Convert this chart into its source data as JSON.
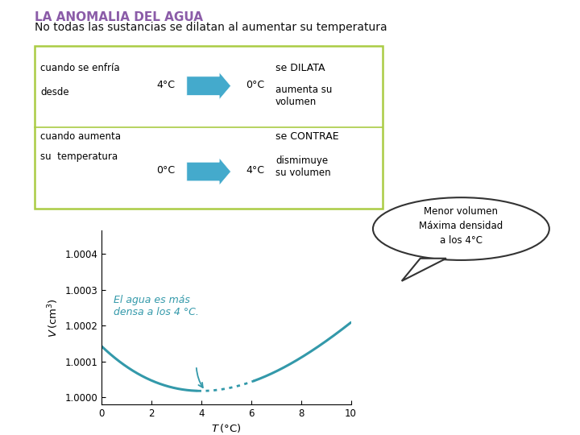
{
  "title": "LA ANOMALIA DEL AGUA",
  "subtitle": "No todas las sustancias se dilatan al aumentar su temperatura",
  "title_color": "#8B5CA8",
  "subtitle_color": "#111111",
  "box_border_color": "#AACC44",
  "arrow_color": "#44AACC",
  "row1_left": "cuando se enfía\ndesde",
  "row1_right_bold": "se DILATA",
  "row1_right_normal": "aumenta su\nvolumen",
  "row2_left": "cuando aumenta\nsu  temperatura",
  "row2_right_bold": "se CONTRAE",
  "row2_right_normal": "dismimuye\nsu volumen",
  "graph_color": "#3399AA",
  "xlim": [
    0,
    10
  ],
  "ylim": [
    0.99998,
    1.000465
  ],
  "yticks": [
    1.0,
    1.0001,
    1.0002,
    1.0003,
    1.0004
  ],
  "xticks": [
    0,
    2,
    4,
    6,
    8,
    10
  ],
  "annotation_text": "El agua es más\ndensa a los 4 °C.",
  "annotation_color": "#3399AA",
  "bubble_text": "Menor volumen\nMáxima densidad\na los 4°C",
  "bubble_color": "#ffffff",
  "bubble_border_color": "#333333"
}
